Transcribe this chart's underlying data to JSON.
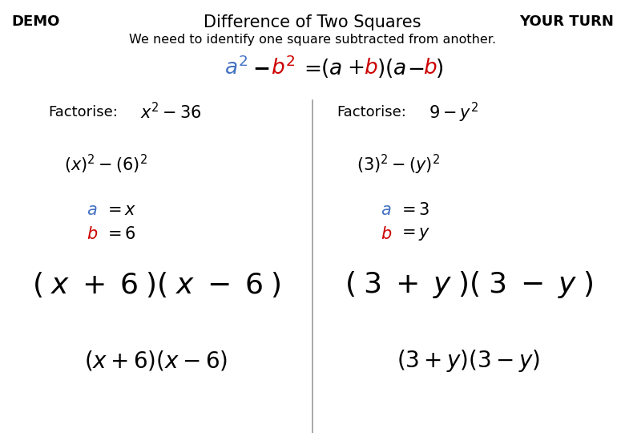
{
  "title": "Difference of Two Squares",
  "demo_label": "DEMO",
  "yourturn_label": "YOUR TURN",
  "subtitle": "We need to identify one square subtracted from another.",
  "color_a": "#4472C4",
  "color_b": "#CC0000",
  "color_black": "#000000",
  "color_gray": "#999999",
  "bg_color": "#FFFFFF",
  "figw": 7.8,
  "figh": 5.4,
  "dpi": 100
}
